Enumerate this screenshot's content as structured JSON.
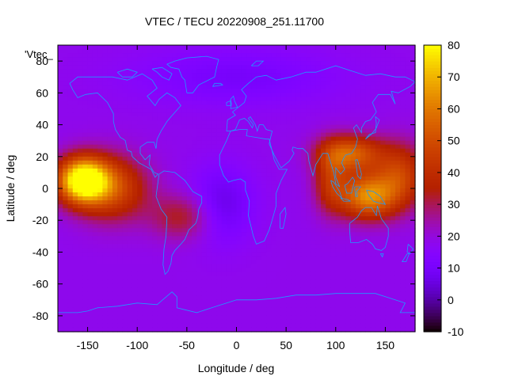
{
  "chart_data": {
    "type": "heatmap",
    "title": "VTEC / TECU 20220908_251.11700",
    "xlabel": "Longitude / deg",
    "ylabel": "Latitude / deg",
    "key_label": "'Vtec_",
    "xlim": [
      -180,
      180
    ],
    "ylim": [
      -90,
      90
    ],
    "x_ticks": [
      -150,
      -100,
      -50,
      0,
      50,
      100,
      150
    ],
    "y_ticks": [
      -80,
      -60,
      -40,
      -20,
      0,
      20,
      40,
      60,
      80
    ],
    "colorbar": {
      "range": [
        -10,
        80
      ],
      "ticks": [
        -10,
        0,
        10,
        20,
        30,
        40,
        50,
        60,
        70,
        80
      ],
      "palette": "gnuplot default (rgbformulae 7,5,15)"
    },
    "background_value": 18,
    "features": [
      {
        "name": "Pacific crest",
        "lon": -155,
        "lat": 5,
        "peak": 68,
        "sx": 18,
        "sy": 10
      },
      {
        "name": "Pacific band east",
        "lon": -125,
        "lat": 0,
        "peak": 30,
        "sx": 25,
        "sy": 14
      },
      {
        "name": "South America south",
        "lon": -55,
        "lat": -18,
        "peak": 16,
        "sx": 22,
        "sy": 10
      },
      {
        "name": "Asia north crest",
        "lon": 115,
        "lat": 22,
        "peak": 36,
        "sx": 22,
        "sy": 8
      },
      {
        "name": "Asia south crest",
        "lon": 132,
        "lat": -5,
        "peak": 44,
        "sx": 20,
        "sy": 10
      },
      {
        "name": "Indian Ocean band",
        "lon": 95,
        "lat": 5,
        "peak": 22,
        "sx": 12,
        "sy": 14
      },
      {
        "name": "Pacific west band",
        "lon": 165,
        "lat": 8,
        "peak": 28,
        "sx": 18,
        "sy": 14
      },
      {
        "name": "Atlantic depletion",
        "lon": -15,
        "lat": -10,
        "peak": -12,
        "sx": 22,
        "sy": 16
      },
      {
        "name": "Arctic depletion",
        "lon": 0,
        "lat": 70,
        "peak": -8,
        "sx": 70,
        "sy": 12
      }
    ]
  }
}
